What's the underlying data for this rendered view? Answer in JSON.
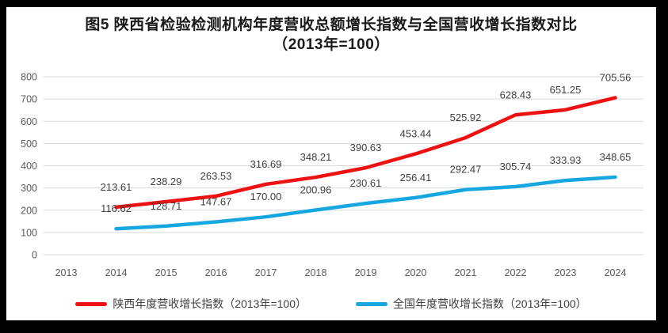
{
  "figure_label": "图5",
  "chart_data": {
    "type": "line",
    "title_line1": "图5  陕西省检验检测机构年度营收总额增长指数与全国营收增长指数对比",
    "title_line2": "（2013年=100）",
    "categories": [
      "2013",
      "2014",
      "2015",
      "2016",
      "2017",
      "2018",
      "2019",
      "2020",
      "2021",
      "2022",
      "2023",
      "2024"
    ],
    "series": [
      {
        "key": "shaanxi",
        "name": "陕西年度营收增长指数（2013年=100）",
        "color": "#ee1111",
        "values": [
          null,
          213.61,
          238.29,
          263.53,
          316.69,
          348.21,
          390.63,
          453.44,
          525.92,
          628.43,
          651.25,
          705.56
        ]
      },
      {
        "key": "national",
        "name": "全国年度营收增长指数（2013年=100）",
        "color": "#16a7e0",
        "values": [
          null,
          116.62,
          128.71,
          147.67,
          170.0,
          200.96,
          230.61,
          256.41,
          292.47,
          305.74,
          333.93,
          348.65
        ]
      }
    ],
    "ylim": [
      0,
      800
    ],
    "ytick_step": 100,
    "ytick_labels": [
      "0",
      "100",
      "200",
      "300",
      "400",
      "500",
      "600",
      "700",
      "800"
    ],
    "grid": true,
    "grid_color": "#d9d9d9",
    "legend_position": "bottom",
    "data_labels_shown": true
  }
}
